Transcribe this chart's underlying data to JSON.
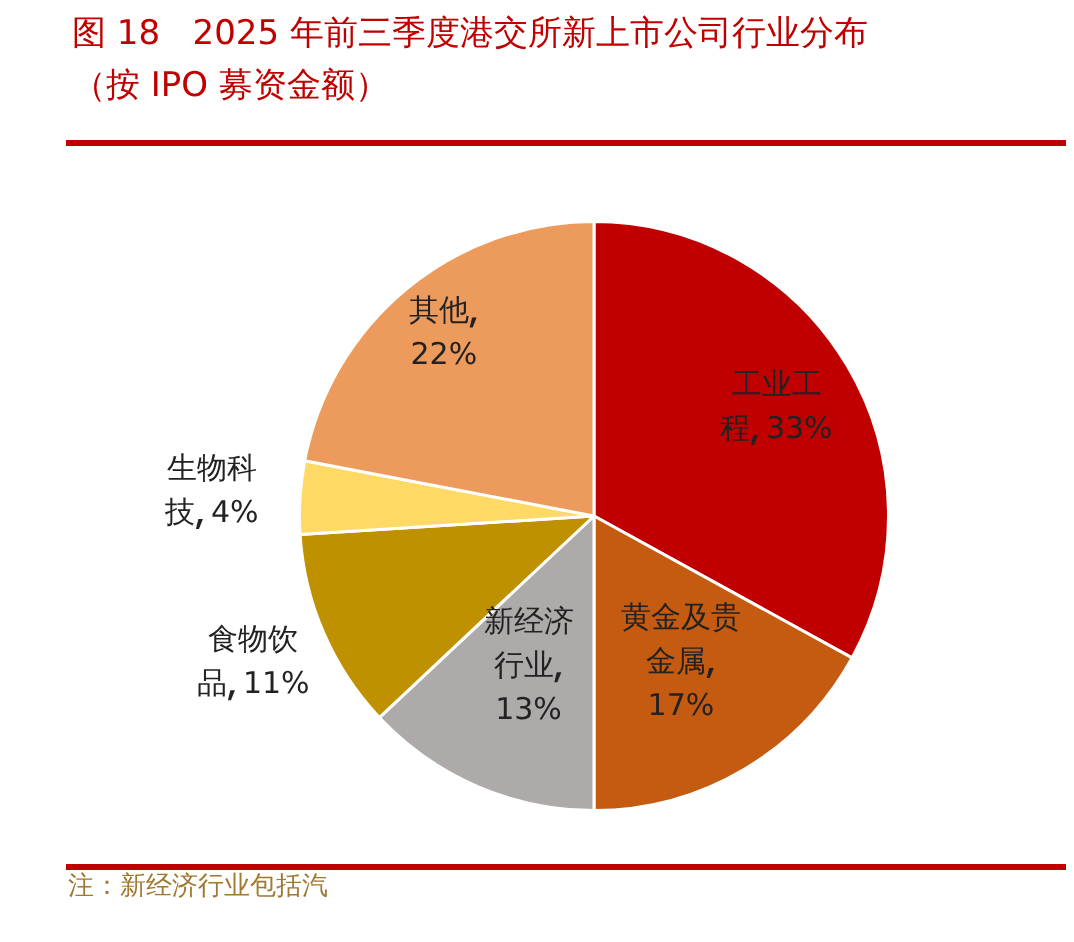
{
  "chart_data": {
    "type": "pie",
    "title": "图 18   2025 年前三季度港交所新上市公司行业分布",
    "subtitle": "（按 IPO 募资金额）",
    "categories": [
      "工业工程",
      "黄金及贵金属",
      "新经济行业",
      "食物饮品",
      "生物科技",
      "其他"
    ],
    "values": [
      33,
      17,
      13,
      11,
      4,
      22
    ],
    "value_labels": [
      "33%",
      "17%",
      "13%",
      "11%",
      "4%",
      "22%"
    ],
    "colors": [
      "#c00000",
      "#c55a11",
      "#aeaaaa",
      "#bf9000",
      "#ffd966",
      "#ed9b5d"
    ],
    "legend": false,
    "annotations": [
      "注：新经济行业包括汽"
    ]
  }
}
